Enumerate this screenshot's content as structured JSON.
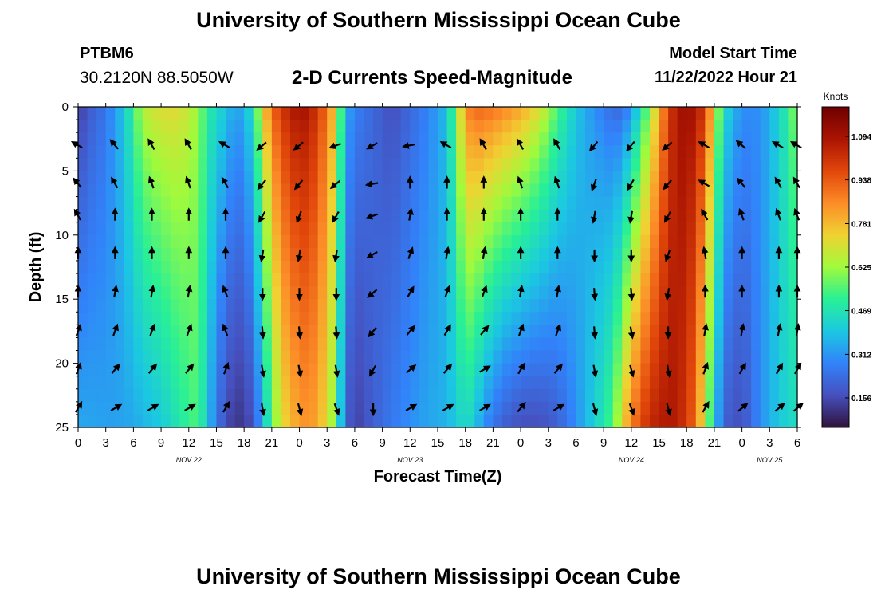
{
  "header": {
    "title": "University of Southern Mississippi Ocean Cube",
    "station_id": "PTBM6",
    "station_coords": "30.2120N  88.5050W",
    "plot_title": "2-D Currents Speed-Magnitude",
    "start_label": "Model Start Time",
    "start_value": "11/22/2022 Hour 21"
  },
  "footer": {
    "title": "University of Southern Mississippi Ocean Cube"
  },
  "chart_data": {
    "type": "heatmap",
    "title": "2-D Currents Speed-Magnitude",
    "xlabel": "Forecast Time(Z)",
    "ylabel": "Depth (ft)",
    "x_ticks": [
      "0",
      "3",
      "6",
      "9",
      "12",
      "15",
      "18",
      "21",
      "0",
      "3",
      "6",
      "9",
      "12",
      "15",
      "18",
      "21",
      "0",
      "3",
      "6",
      "9",
      "12",
      "15",
      "18",
      "21",
      "0",
      "3",
      "6"
    ],
    "x_range_hours": [
      0,
      78
    ],
    "day_labels": [
      {
        "label": "NOV 22",
        "hour": 12
      },
      {
        "label": "NOV 23",
        "hour": 36
      },
      {
        "label": "NOV 24",
        "hour": 60
      },
      {
        "label": "NOV 25",
        "hour": 75
      }
    ],
    "y_ticks": [
      "0",
      "5",
      "10",
      "15",
      "20",
      "25"
    ],
    "ylim": [
      0,
      25
    ],
    "colorbar": {
      "title": "Knots",
      "ticks": [
        "0.156",
        "0.312",
        "0.469",
        "0.625",
        "0.781",
        "0.938",
        "1.094"
      ],
      "range": [
        0.05,
        1.2
      ]
    },
    "speed_profile": {
      "hours": [
        0,
        1,
        3,
        5,
        7,
        9,
        11,
        13,
        14,
        15,
        16,
        17,
        18,
        19,
        20,
        21,
        22,
        23,
        24,
        25,
        26,
        27,
        28,
        29,
        30,
        32,
        34,
        36,
        38,
        40,
        41,
        42,
        43,
        44,
        46,
        48,
        50,
        52,
        54,
        56,
        58,
        59,
        60,
        62,
        64,
        65,
        66,
        67,
        68,
        70,
        72,
        74,
        76,
        78
      ],
      "surface": [
        0.12,
        0.18,
        0.25,
        0.4,
        0.66,
        0.72,
        0.72,
        0.62,
        0.5,
        0.45,
        0.4,
        0.33,
        0.36,
        0.48,
        0.72,
        0.92,
        1.0,
        1.06,
        1.1,
        1.08,
        1.0,
        0.9,
        0.72,
        0.35,
        0.28,
        0.22,
        0.16,
        0.22,
        0.28,
        0.38,
        0.6,
        0.86,
        0.92,
        0.92,
        0.88,
        0.82,
        0.72,
        0.55,
        0.4,
        0.3,
        0.22,
        0.22,
        0.3,
        0.6,
        0.98,
        1.08,
        1.12,
        1.08,
        1.0,
        0.45,
        0.3,
        0.3,
        0.42,
        0.62
      ],
      "bottom": [
        0.34,
        0.34,
        0.33,
        0.33,
        0.36,
        0.4,
        0.48,
        0.55,
        0.4,
        0.25,
        0.16,
        0.12,
        0.12,
        0.18,
        0.35,
        0.55,
        0.7,
        0.78,
        0.82,
        0.85,
        0.8,
        0.72,
        0.55,
        0.22,
        0.13,
        0.2,
        0.26,
        0.3,
        0.34,
        0.36,
        0.4,
        0.45,
        0.4,
        0.3,
        0.2,
        0.16,
        0.16,
        0.2,
        0.3,
        0.42,
        0.55,
        0.72,
        0.88,
        1.04,
        1.08,
        1.06,
        1.0,
        0.9,
        0.65,
        0.2,
        0.16,
        0.3,
        0.4,
        0.45
      ]
    },
    "vector_columns_hours": [
      0,
      4,
      8,
      12,
      16,
      20,
      24,
      28,
      32,
      36,
      40,
      44,
      48,
      52,
      56,
      60,
      64,
      68,
      72,
      76,
      78
    ],
    "vector_rows_ft": [
      3,
      6,
      8.5,
      11.5,
      14.5,
      17.5,
      20.5,
      23.5
    ],
    "vector_direction_deg": [
      [
        300,
        320,
        330,
        0,
        0,
        20,
        20,
        30
      ],
      [
        320,
        330,
        0,
        0,
        10,
        20,
        40,
        60
      ],
      [
        330,
        340,
        0,
        0,
        10,
        20,
        40,
        60
      ],
      [
        330,
        340,
        0,
        0,
        10,
        20,
        40,
        60
      ],
      [
        300,
        330,
        0,
        0,
        340,
        340,
        20,
        30
      ],
      [
        230,
        220,
        210,
        190,
        180,
        175,
        170,
        170
      ],
      [
        230,
        220,
        200,
        190,
        180,
        175,
        170,
        165
      ],
      [
        250,
        230,
        210,
        190,
        180,
        175,
        170,
        160
      ],
      [
        240,
        260,
        250,
        240,
        230,
        220,
        210,
        180
      ],
      [
        260,
        0,
        10,
        20,
        30,
        40,
        50,
        60
      ],
      [
        300,
        0,
        0,
        10,
        20,
        30,
        40,
        60
      ],
      [
        330,
        0,
        0,
        10,
        20,
        40,
        60,
        60
      ],
      [
        330,
        340,
        0,
        0,
        10,
        20,
        30,
        40
      ],
      [
        330,
        340,
        0,
        0,
        10,
        20,
        40,
        60
      ],
      [
        220,
        200,
        190,
        180,
        175,
        175,
        170,
        165
      ],
      [
        220,
        210,
        190,
        180,
        175,
        170,
        165,
        160
      ],
      [
        230,
        220,
        210,
        200,
        190,
        180,
        170,
        165
      ],
      [
        300,
        300,
        330,
        350,
        0,
        10,
        20,
        30
      ],
      [
        310,
        320,
        340,
        0,
        0,
        10,
        30,
        50
      ],
      [
        300,
        330,
        340,
        0,
        0,
        10,
        30,
        50
      ],
      [
        300,
        330,
        340,
        0,
        0,
        10,
        30,
        50
      ]
    ]
  }
}
